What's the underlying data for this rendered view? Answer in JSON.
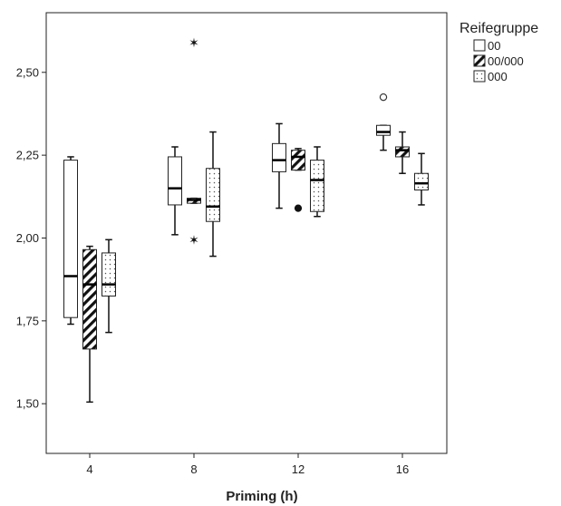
{
  "chart_data": {
    "type": "boxplot",
    "title": "",
    "xlabel": "Priming (h)",
    "ylabel": "",
    "ylim": [
      1.35,
      2.68
    ],
    "y_ticks": [
      "1,50",
      "1,75",
      "2,00",
      "2,25",
      "2,50"
    ],
    "y_tick_values": [
      1.5,
      1.75,
      2.0,
      2.25,
      2.5
    ],
    "categories": [
      "4",
      "8",
      "12",
      "16"
    ],
    "legend": {
      "title": "Reifegruppe",
      "position": "top-right"
    },
    "grid": false,
    "series": [
      {
        "name": "00",
        "pattern": "plain",
        "boxes": [
          {
            "category": "4",
            "min": 1.74,
            "q1": 1.76,
            "median": 1.885,
            "q3": 2.235,
            "max": 2.245,
            "outliers": [],
            "extremes": []
          },
          {
            "category": "8",
            "min": 2.01,
            "q1": 2.1,
            "median": 2.15,
            "q3": 2.245,
            "max": 2.275,
            "outliers": [],
            "extremes": []
          },
          {
            "category": "12",
            "min": 2.09,
            "q1": 2.2,
            "median": 2.235,
            "q3": 2.285,
            "max": 2.345,
            "outliers": [],
            "extremes": []
          },
          {
            "category": "16",
            "min": 2.265,
            "q1": 2.31,
            "median": 2.32,
            "q3": 2.34,
            "max": 2.34,
            "outliers": [
              2.425
            ],
            "extremes": []
          }
        ]
      },
      {
        "name": "00/000",
        "pattern": "hatched",
        "boxes": [
          {
            "category": "4",
            "min": 1.505,
            "q1": 1.665,
            "median": 1.86,
            "q3": 1.965,
            "max": 1.975,
            "outliers": [],
            "extremes": []
          },
          {
            "category": "8",
            "min": 2.105,
            "q1": 2.105,
            "median": 2.115,
            "q3": 2.12,
            "max": 2.12,
            "outliers": [],
            "extremes": [
              2.59,
              1.995
            ]
          },
          {
            "category": "12",
            "min": 2.205,
            "q1": 2.205,
            "median": 2.245,
            "q3": 2.265,
            "max": 2.27,
            "outliers": [
              2.09
            ],
            "extremes": []
          },
          {
            "category": "16",
            "min": 2.195,
            "q1": 2.245,
            "median": 2.265,
            "q3": 2.275,
            "max": 2.32,
            "outliers": [],
            "extremes": []
          }
        ]
      },
      {
        "name": "000",
        "pattern": "dotted",
        "boxes": [
          {
            "category": "4",
            "min": 1.715,
            "q1": 1.825,
            "median": 1.86,
            "q3": 1.955,
            "max": 1.995,
            "outliers": [],
            "extremes": []
          },
          {
            "category": "8",
            "min": 1.945,
            "q1": 2.05,
            "median": 2.095,
            "q3": 2.21,
            "max": 2.32,
            "outliers": [],
            "extremes": []
          },
          {
            "category": "12",
            "min": 2.065,
            "q1": 2.08,
            "median": 2.175,
            "q3": 2.235,
            "max": 2.275,
            "outliers": [],
            "extremes": []
          },
          {
            "category": "16",
            "min": 2.1,
            "q1": 2.145,
            "median": 2.165,
            "q3": 2.195,
            "max": 2.255,
            "outliers": [],
            "extremes": []
          }
        ]
      }
    ]
  }
}
